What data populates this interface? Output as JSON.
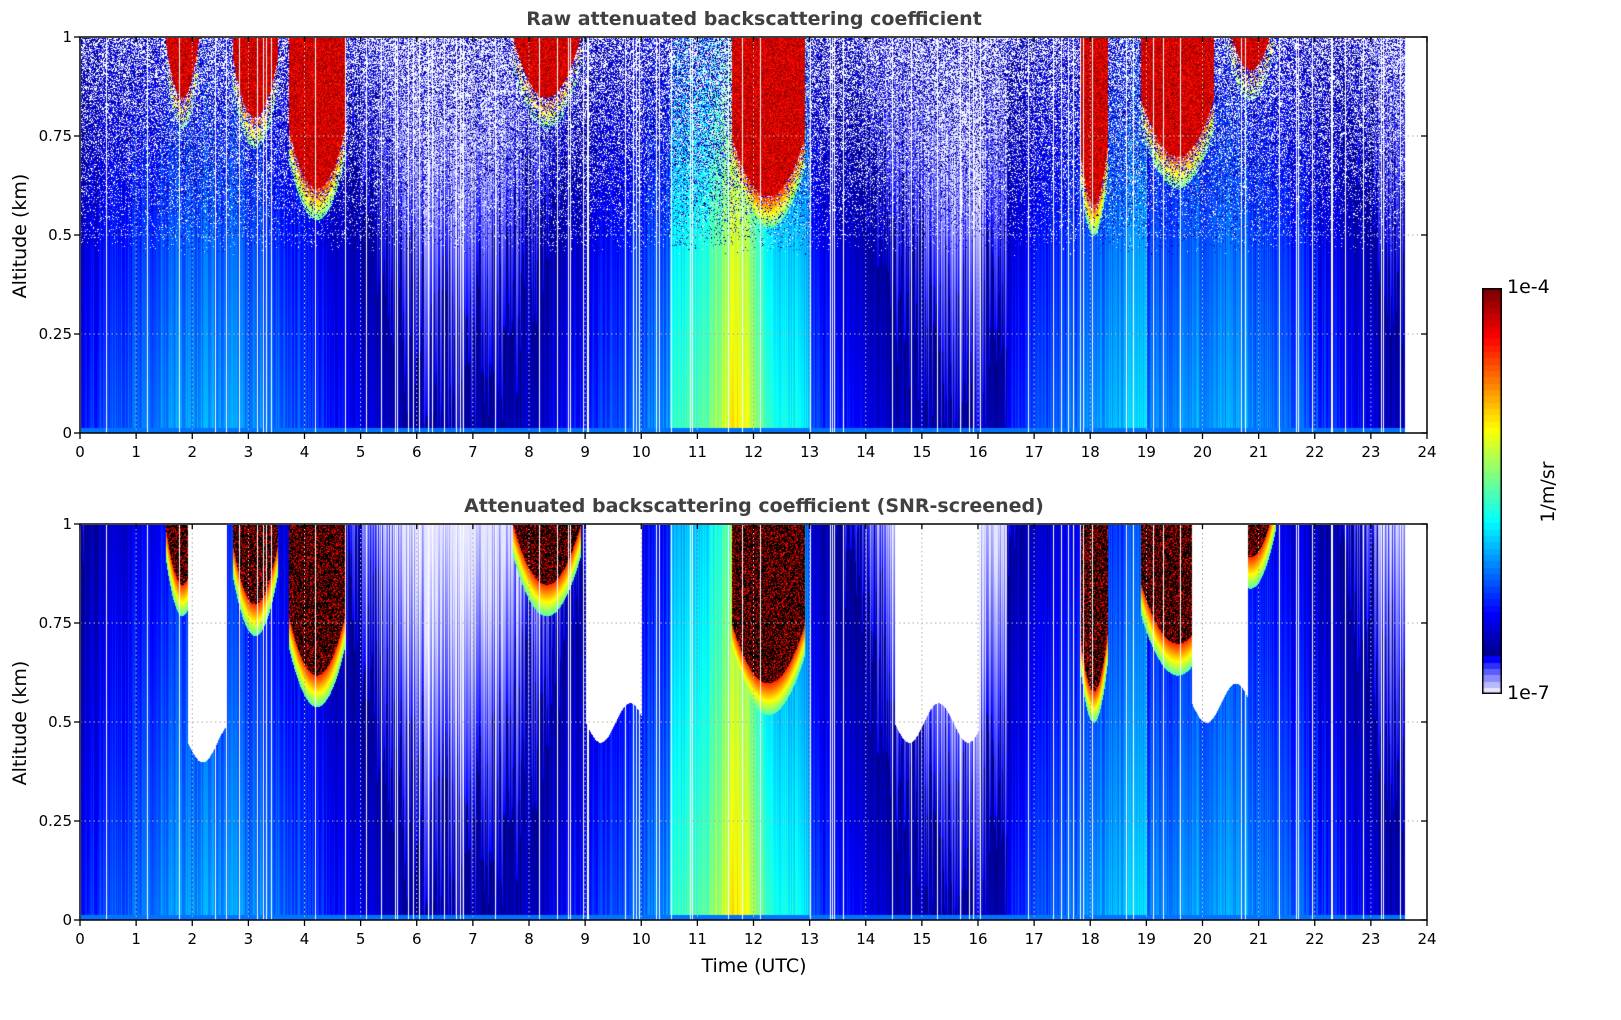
{
  "chart_data": [
    {
      "type": "heatmap",
      "title": "Raw attenuated backscattering coefficient",
      "xlabel": "",
      "ylabel": "Altitude (km)",
      "xlim": [
        0,
        24
      ],
      "ylim": [
        0,
        1
      ],
      "x_ticks": [
        "0",
        "1",
        "2",
        "3",
        "4",
        "5",
        "6",
        "7",
        "8",
        "9",
        "10",
        "11",
        "12",
        "13",
        "14",
        "15",
        "16",
        "17",
        "18",
        "19",
        "20",
        "21",
        "22",
        "23",
        "24"
      ],
      "y_ticks": [
        "0",
        "0.25",
        "0.5",
        "0.75",
        "1"
      ],
      "grid": true,
      "data_end_time": 23.6,
      "cloud_layers": [
        {
          "t_start": 1.5,
          "t_end": 2.1,
          "base_km": 0.85
        },
        {
          "t_start": 2.7,
          "t_end": 3.5,
          "base_km": 0.8
        },
        {
          "t_start": 3.7,
          "t_end": 4.7,
          "base_km": 0.62
        },
        {
          "t_start": 7.7,
          "t_end": 8.9,
          "base_km": 0.85
        },
        {
          "t_start": 11.6,
          "t_end": 12.9,
          "base_km": 0.6
        },
        {
          "t_start": 17.8,
          "t_end": 18.3,
          "base_km": 0.58
        },
        {
          "t_start": 18.9,
          "t_end": 20.2,
          "base_km": 0.7
        },
        {
          "t_start": 20.4,
          "t_end": 21.3,
          "base_km": 0.92
        }
      ]
    },
    {
      "type": "heatmap",
      "title": "Attenuated backscattering coefficient (SNR-screened)",
      "xlabel": "Time (UTC)",
      "ylabel": "Altitude (km)",
      "xlim": [
        0,
        24
      ],
      "ylim": [
        0,
        1
      ],
      "x_ticks": [
        "0",
        "1",
        "2",
        "3",
        "4",
        "5",
        "6",
        "7",
        "8",
        "9",
        "10",
        "11",
        "12",
        "13",
        "14",
        "15",
        "16",
        "17",
        "18",
        "19",
        "20",
        "21",
        "22",
        "23",
        "24"
      ],
      "y_ticks": [
        "0",
        "0.25",
        "0.5",
        "0.75",
        "1"
      ],
      "grid": true,
      "data_end_time": 23.6,
      "screened_regions": [
        {
          "t_start": 1.9,
          "t_end": 2.6,
          "top_km": 0.45
        },
        {
          "t_start": 9.0,
          "t_end": 10.0,
          "top_km": 0.5
        },
        {
          "t_start": 14.5,
          "t_end": 16.0,
          "top_km": 0.5
        },
        {
          "t_start": 19.8,
          "t_end": 20.8,
          "top_km": 0.55
        }
      ]
    }
  ],
  "colorbar": {
    "max_label": "1e-4",
    "min_label": "1e-7",
    "unit": "1/m/sr",
    "scale": "log",
    "range": [
      1e-07,
      0.0001
    ]
  }
}
